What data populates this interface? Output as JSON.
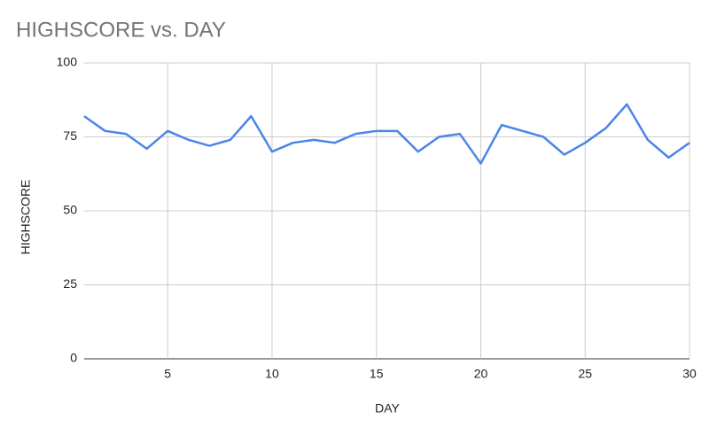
{
  "chart_data": {
    "type": "line",
    "title": "HIGHSCORE vs. DAY",
    "x_label": "DAY",
    "y_label": "HIGHSCORE",
    "x": [
      1,
      2,
      3,
      4,
      5,
      6,
      7,
      8,
      9,
      10,
      11,
      12,
      13,
      14,
      15,
      16,
      17,
      18,
      19,
      20,
      21,
      22,
      23,
      24,
      25,
      26,
      27,
      28,
      29,
      30
    ],
    "values": [
      82,
      77,
      76,
      71,
      77,
      74,
      72,
      74,
      82,
      70,
      73,
      74,
      73,
      76,
      77,
      77,
      70,
      75,
      76,
      66,
      79,
      77,
      75,
      69,
      73,
      78,
      86,
      74,
      68,
      73
    ],
    "color": "#4a86e8",
    "xlim": [
      1,
      30
    ],
    "xticks": [
      5,
      10,
      15,
      20,
      25,
      30
    ],
    "ylim": [
      0,
      100
    ],
    "yticks": [
      0,
      25,
      50,
      75,
      100
    ],
    "grid": true
  }
}
